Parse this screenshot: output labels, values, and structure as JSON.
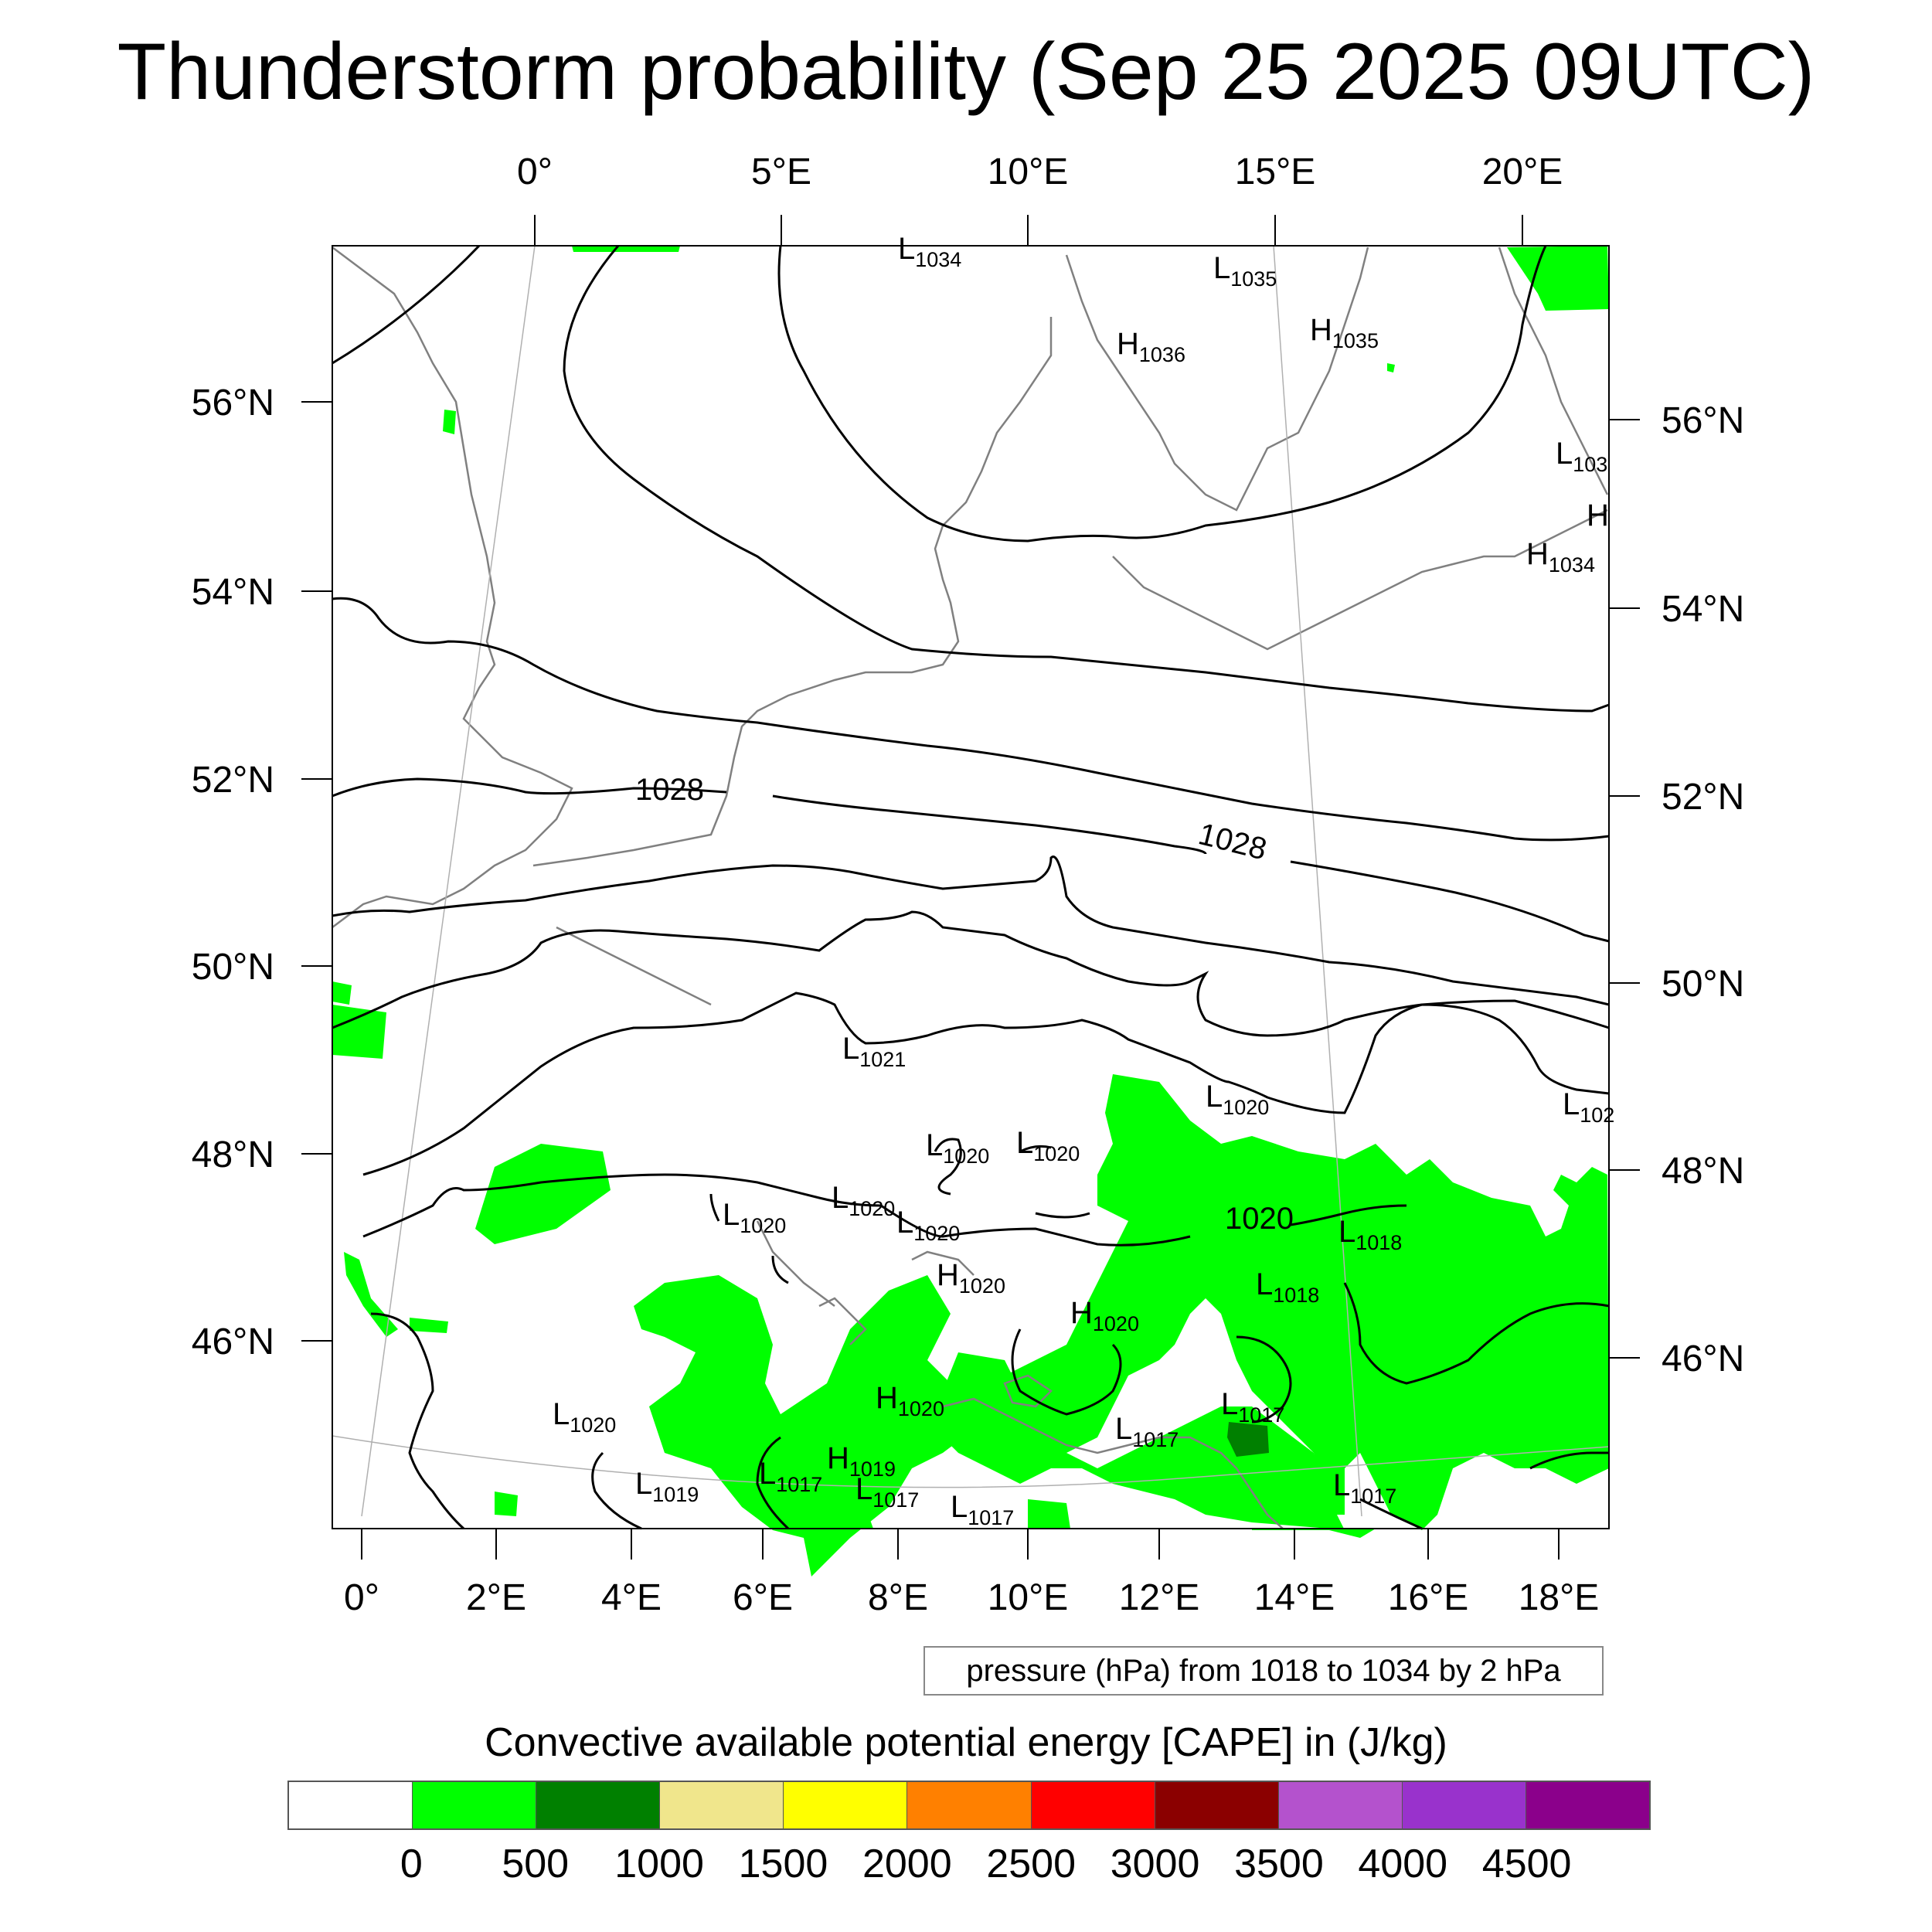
{
  "title": "Thunderstorm probability (Sep 25 2025 09UTC)",
  "axes": {
    "top_labels": [
      "0°",
      "5°E",
      "10°E",
      "15°E",
      "20°E"
    ],
    "bottom_labels": [
      "0°",
      "2°E",
      "4°E",
      "6°E",
      "8°E",
      "10°E",
      "12°E",
      "14°E",
      "16°E",
      "18°E"
    ],
    "left_labels": [
      "56°N",
      "54°N",
      "52°N",
      "50°N",
      "48°N",
      "46°N"
    ],
    "right_labels": [
      "56°N",
      "54°N",
      "52°N",
      "50°N",
      "48°N",
      "46°N"
    ]
  },
  "isobar_labels": [
    "1028",
    "1028",
    "1020"
  ],
  "pressure_centers": [
    {
      "type": "L",
      "value": "1034"
    },
    {
      "type": "L",
      "value": "1035"
    },
    {
      "type": "H",
      "value": "1036"
    },
    {
      "type": "H",
      "value": "1035"
    },
    {
      "type": "L",
      "value": "103"
    },
    {
      "type": "H",
      "value": ""
    },
    {
      "type": "H",
      "value": "1034"
    },
    {
      "type": "L",
      "value": "1021"
    },
    {
      "type": "L",
      "value": "1020"
    },
    {
      "type": "L",
      "value": "102"
    },
    {
      "type": "L",
      "value": "1020"
    },
    {
      "type": "L",
      "value": "1020"
    },
    {
      "type": "L",
      "value": "1020"
    },
    {
      "type": "L",
      "value": "1020"
    },
    {
      "type": "L",
      "value": "1020"
    },
    {
      "type": "L",
      "value": "1018"
    },
    {
      "type": "L",
      "value": "1018"
    },
    {
      "type": "H",
      "value": "1020"
    },
    {
      "type": "H",
      "value": "1020"
    },
    {
      "type": "H",
      "value": "1020"
    },
    {
      "type": "L",
      "value": "1017"
    },
    {
      "type": "L",
      "value": "1017"
    },
    {
      "type": "L",
      "value": "1020"
    },
    {
      "type": "H",
      "value": "1019"
    },
    {
      "type": "L",
      "value": "1019"
    },
    {
      "type": "L",
      "value": "1017"
    },
    {
      "type": "L",
      "value": "1017"
    },
    {
      "type": "L",
      "value": "1017"
    },
    {
      "type": "L",
      "value": "1017"
    }
  ],
  "contour_legend": "pressure (hPa) from 1018 to 1034 by 2 hPa",
  "colorbar": {
    "title": "Convective available potential energy [CAPE] in (J/kg)",
    "colors": [
      "#ffffff",
      "#00ff00",
      "#008000",
      "#f0e68c",
      "#ffff00",
      "#ff8000",
      "#ff0000",
      "#8b0000",
      "#b452cd",
      "#9932cc",
      "#8b008b"
    ],
    "labels": [
      "0",
      "500",
      "1000",
      "1500",
      "2000",
      "2500",
      "3000",
      "3500",
      "4000",
      "4500"
    ]
  },
  "colors": {
    "cape_low": "#00ff00",
    "cape_mid": "#008000",
    "coastline": "#808080",
    "isobar": "#000000"
  }
}
